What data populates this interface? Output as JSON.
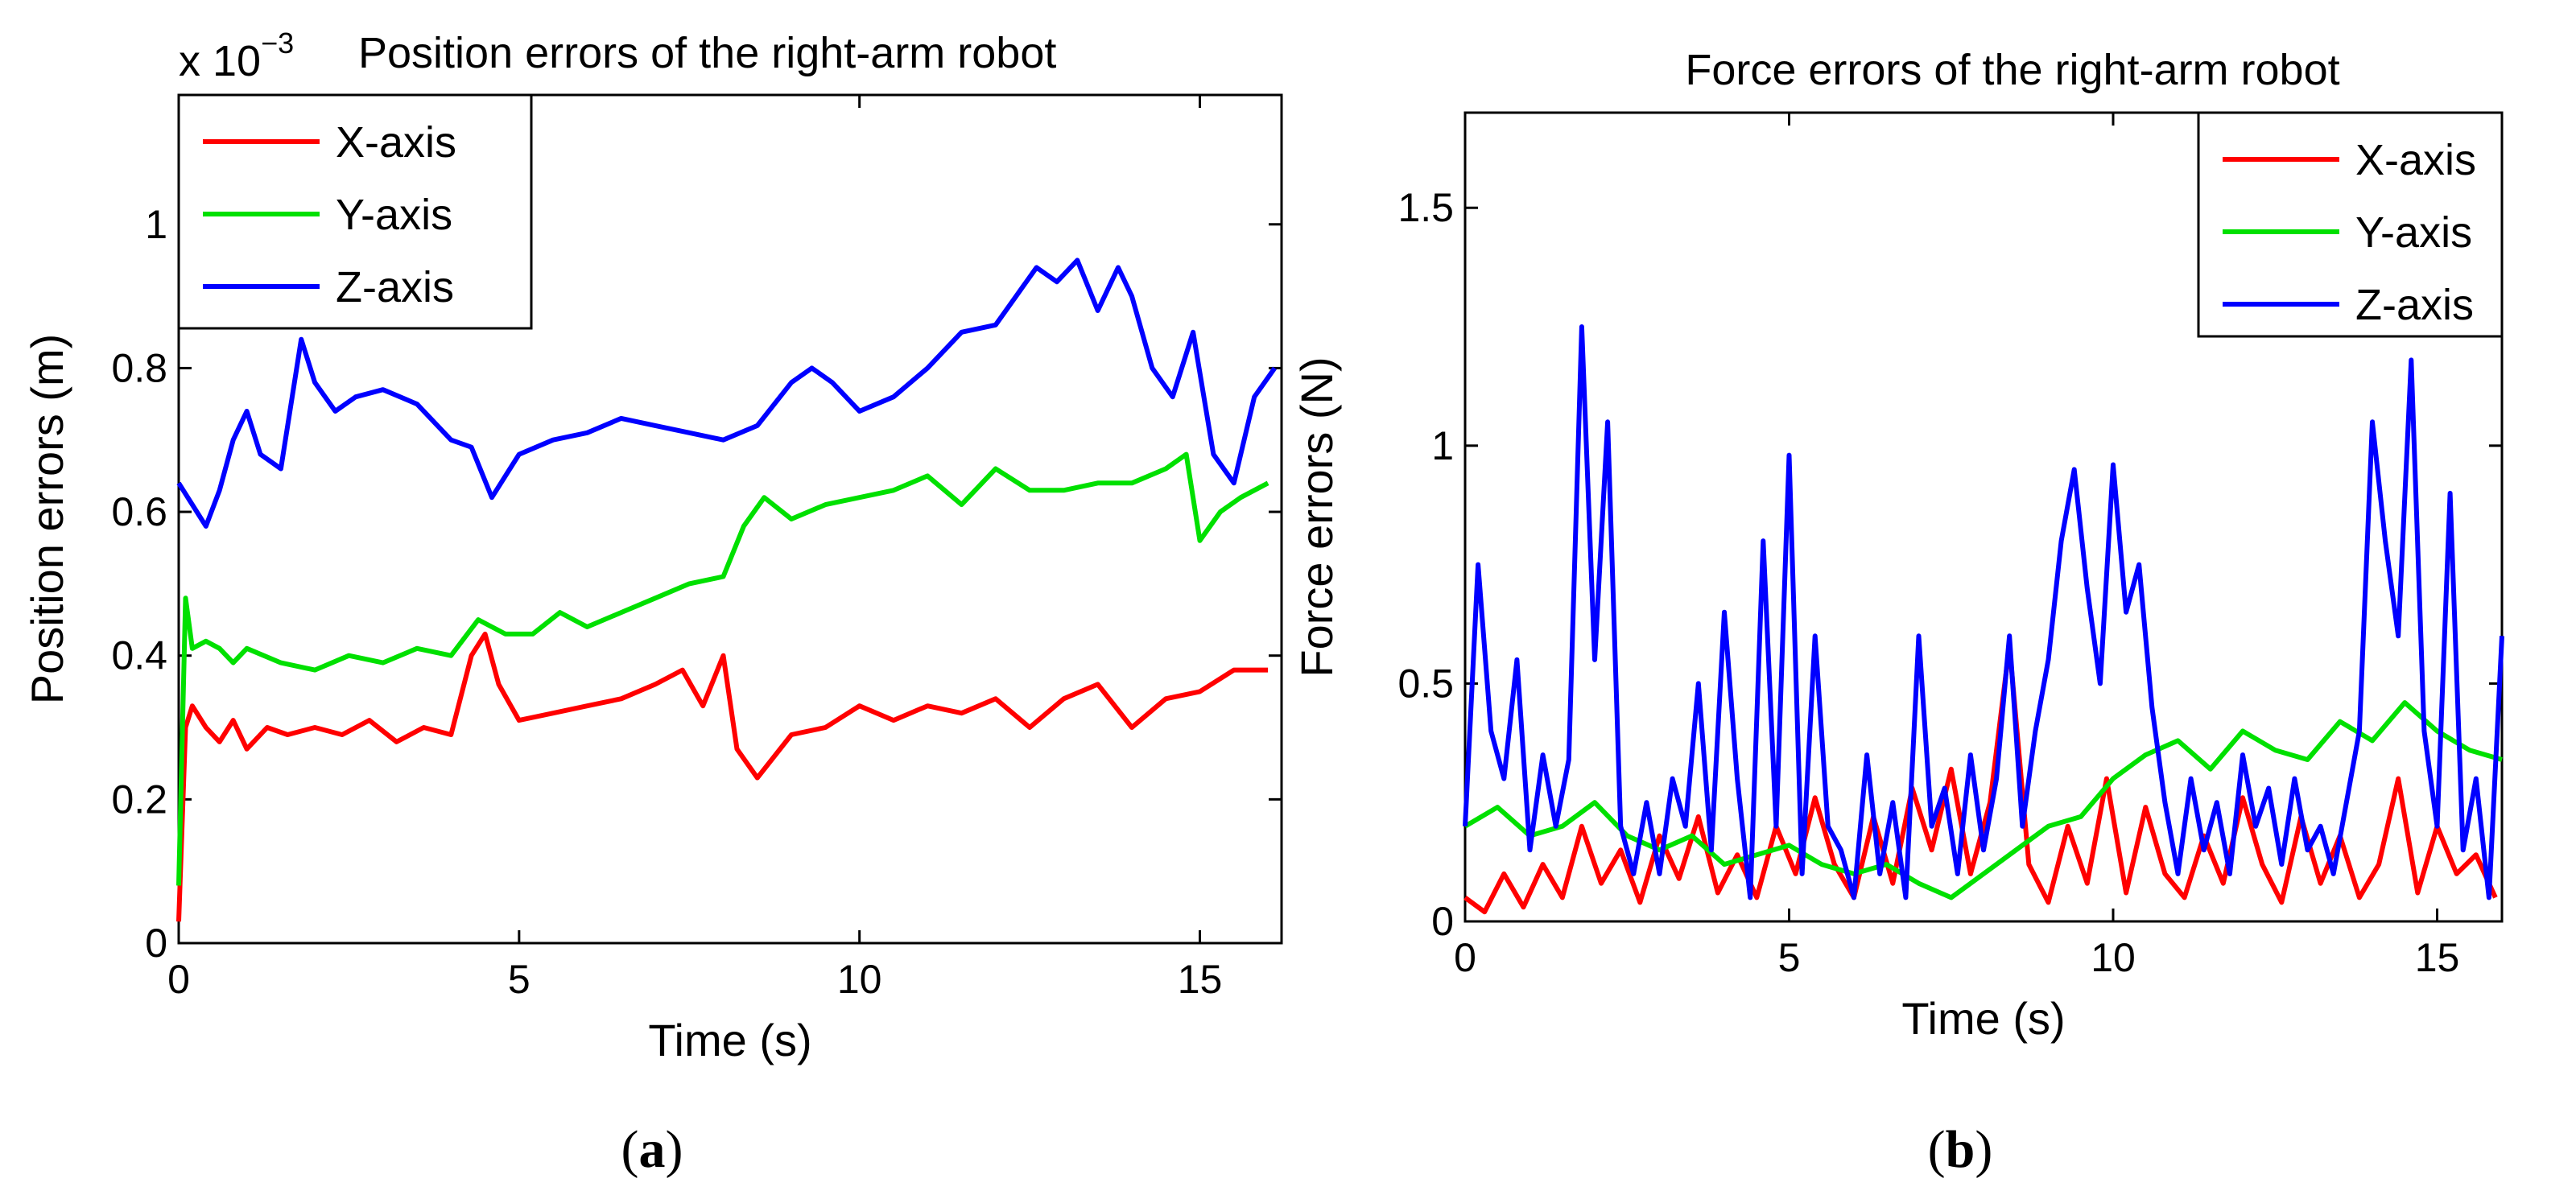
{
  "chart_data": [
    {
      "type": "line",
      "title": "Position errors of the right-arm robot",
      "scale_label": "x 10",
      "scale_exponent": "−3",
      "xlabel": "Time (s)",
      "ylabel": "Position errors (m)",
      "xlim": [
        0,
        16.2
      ],
      "ylim": [
        0,
        0.00118
      ],
      "xticks": [
        0,
        5,
        10,
        15
      ],
      "xtick_labels": [
        "0",
        "5",
        "10",
        "15"
      ],
      "yticks": [
        0,
        0.0002,
        0.0004,
        0.0006,
        0.0008,
        0.001
      ],
      "ytick_labels": [
        "0",
        "0.2",
        "0.4",
        "0.6",
        "0.8",
        "1"
      ],
      "grid": false,
      "legend_position": "top-left",
      "caption": "a",
      "series": [
        {
          "name": "X-axis",
          "color": "#ff0000",
          "x": [
            0,
            0.1,
            0.2,
            0.4,
            0.6,
            0.8,
            1.0,
            1.3,
            1.6,
            2.0,
            2.4,
            2.8,
            3.2,
            3.6,
            4.0,
            4.3,
            4.5,
            4.7,
            5.0,
            5.5,
            6.0,
            6.5,
            7.0,
            7.4,
            7.7,
            8.0,
            8.2,
            8.5,
            9.0,
            9.5,
            10.0,
            10.5,
            11.0,
            11.5,
            12.0,
            12.5,
            13.0,
            13.5,
            14.0,
            14.5,
            15.0,
            15.5,
            16.0
          ],
          "values": [
            3e-05,
            0.0003,
            0.00033,
            0.0003,
            0.00028,
            0.00031,
            0.00027,
            0.0003,
            0.00029,
            0.0003,
            0.00029,
            0.00031,
            0.00028,
            0.0003,
            0.00029,
            0.0004,
            0.00043,
            0.00036,
            0.00031,
            0.00032,
            0.00033,
            0.00034,
            0.00036,
            0.00038,
            0.00033,
            0.0004,
            0.00027,
            0.00023,
            0.00029,
            0.0003,
            0.00033,
            0.00031,
            0.00033,
            0.00032,
            0.00034,
            0.0003,
            0.00034,
            0.00036,
            0.0003,
            0.00034,
            0.00035,
            0.00038,
            0.00038
          ]
        },
        {
          "name": "Y-axis",
          "color": "#00e000",
          "x": [
            0,
            0.1,
            0.2,
            0.4,
            0.6,
            0.8,
            1.0,
            1.5,
            2.0,
            2.5,
            3.0,
            3.5,
            4.0,
            4.4,
            4.8,
            5.2,
            5.6,
            6.0,
            6.5,
            7.0,
            7.5,
            8.0,
            8.3,
            8.6,
            9.0,
            9.5,
            10.0,
            10.5,
            11.0,
            11.5,
            12.0,
            12.5,
            13.0,
            13.5,
            14.0,
            14.5,
            14.8,
            15.0,
            15.3,
            15.6,
            16.0
          ],
          "values": [
            8e-05,
            0.00048,
            0.00041,
            0.00042,
            0.00041,
            0.00039,
            0.00041,
            0.00039,
            0.00038,
            0.0004,
            0.00039,
            0.00041,
            0.0004,
            0.00045,
            0.00043,
            0.00043,
            0.00046,
            0.00044,
            0.00046,
            0.00048,
            0.0005,
            0.00051,
            0.00058,
            0.00062,
            0.00059,
            0.00061,
            0.00062,
            0.00063,
            0.00065,
            0.00061,
            0.00066,
            0.00063,
            0.00063,
            0.00064,
            0.00064,
            0.00066,
            0.00068,
            0.00056,
            0.0006,
            0.00062,
            0.00064
          ]
        },
        {
          "name": "Z-axis",
          "color": "#0000ff",
          "x": [
            0,
            0.2,
            0.4,
            0.6,
            0.8,
            1.0,
            1.2,
            1.5,
            1.8,
            2.0,
            2.3,
            2.6,
            3.0,
            3.5,
            4.0,
            4.3,
            4.6,
            5.0,
            5.5,
            6.0,
            6.5,
            7.0,
            7.5,
            8.0,
            8.5,
            9.0,
            9.3,
            9.6,
            10.0,
            10.5,
            11.0,
            11.5,
            12.0,
            12.3,
            12.6,
            12.9,
            13.2,
            13.5,
            13.8,
            14.0,
            14.3,
            14.6,
            14.9,
            15.2,
            15.5,
            15.8,
            16.1
          ],
          "values": [
            0.00064,
            0.00061,
            0.00058,
            0.00063,
            0.0007,
            0.00074,
            0.00068,
            0.00066,
            0.00084,
            0.00078,
            0.00074,
            0.00076,
            0.00077,
            0.00075,
            0.0007,
            0.00069,
            0.00062,
            0.00068,
            0.0007,
            0.00071,
            0.00073,
            0.00072,
            0.00071,
            0.0007,
            0.00072,
            0.00078,
            0.0008,
            0.00078,
            0.00074,
            0.00076,
            0.0008,
            0.00085,
            0.00086,
            0.0009,
            0.00094,
            0.00092,
            0.00095,
            0.00088,
            0.00094,
            0.0009,
            0.0008,
            0.00076,
            0.00085,
            0.00068,
            0.00064,
            0.00076,
            0.0008
          ]
        }
      ]
    },
    {
      "type": "line",
      "title": "Force errors of the right-arm robot",
      "xlabel": "Time (s)",
      "ylabel": "Force errors (N)",
      "xlim": [
        0,
        16
      ],
      "ylim": [
        0,
        1.7
      ],
      "xticks": [
        0,
        5,
        10,
        15
      ],
      "xtick_labels": [
        "0",
        "5",
        "10",
        "15"
      ],
      "yticks": [
        0,
        0.5,
        1,
        1.5
      ],
      "ytick_labels": [
        "0",
        "0.5",
        "1",
        "1.5"
      ],
      "grid": false,
      "legend_position": "top-right",
      "caption": "b",
      "series": [
        {
          "name": "X-axis",
          "color": "#ff0000",
          "x": [
            0,
            0.3,
            0.6,
            0.9,
            1.2,
            1.5,
            1.8,
            2.1,
            2.4,
            2.7,
            3.0,
            3.3,
            3.6,
            3.9,
            4.2,
            4.5,
            4.8,
            5.1,
            5.4,
            5.7,
            6.0,
            6.3,
            6.6,
            6.9,
            7.2,
            7.5,
            7.8,
            8.1,
            8.4,
            8.7,
            9.0,
            9.3,
            9.6,
            9.9,
            10.2,
            10.5,
            10.8,
            11.1,
            11.4,
            11.7,
            12.0,
            12.3,
            12.6,
            12.9,
            13.2,
            13.5,
            13.8,
            14.1,
            14.4,
            14.7,
            15.0,
            15.3,
            15.6,
            15.9
          ],
          "values": [
            0.05,
            0.02,
            0.1,
            0.03,
            0.12,
            0.05,
            0.2,
            0.08,
            0.15,
            0.04,
            0.18,
            0.09,
            0.22,
            0.06,
            0.14,
            0.05,
            0.2,
            0.1,
            0.26,
            0.12,
            0.05,
            0.22,
            0.08,
            0.28,
            0.15,
            0.32,
            0.1,
            0.25,
            0.58,
            0.12,
            0.04,
            0.2,
            0.08,
            0.3,
            0.06,
            0.24,
            0.1,
            0.05,
            0.18,
            0.08,
            0.26,
            0.12,
            0.04,
            0.22,
            0.08,
            0.18,
            0.05,
            0.12,
            0.3,
            0.06,
            0.2,
            0.1,
            0.14,
            0.05
          ]
        },
        {
          "name": "Y-axis",
          "color": "#00e000",
          "x": [
            0,
            0.5,
            1.0,
            1.5,
            2.0,
            2.5,
            3.0,
            3.5,
            4.0,
            4.5,
            5.0,
            5.5,
            6.0,
            6.5,
            7.0,
            7.5,
            8.0,
            8.5,
            9.0,
            9.5,
            10.0,
            10.5,
            11.0,
            11.5,
            12.0,
            12.5,
            13.0,
            13.5,
            14.0,
            14.5,
            15.0,
            15.5,
            16.0
          ],
          "values": [
            0.2,
            0.24,
            0.18,
            0.2,
            0.25,
            0.18,
            0.15,
            0.18,
            0.12,
            0.14,
            0.16,
            0.12,
            0.1,
            0.12,
            0.08,
            0.05,
            0.1,
            0.15,
            0.2,
            0.22,
            0.3,
            0.35,
            0.38,
            0.32,
            0.4,
            0.36,
            0.34,
            0.42,
            0.38,
            0.46,
            0.4,
            0.36,
            0.34
          ]
        },
        {
          "name": "Z-axis",
          "color": "#0000ff",
          "x": [
            0,
            0.2,
            0.4,
            0.6,
            0.8,
            1.0,
            1.2,
            1.4,
            1.6,
            1.8,
            2.0,
            2.2,
            2.4,
            2.6,
            2.8,
            3.0,
            3.2,
            3.4,
            3.6,
            3.8,
            4.0,
            4.2,
            4.4,
            4.6,
            4.8,
            5.0,
            5.2,
            5.4,
            5.6,
            5.8,
            6.0,
            6.2,
            6.4,
            6.6,
            6.8,
            7.0,
            7.2,
            7.4,
            7.6,
            7.8,
            8.0,
            8.2,
            8.4,
            8.6,
            8.8,
            9.0,
            9.2,
            9.4,
            9.6,
            9.8,
            10.0,
            10.2,
            10.4,
            10.6,
            10.8,
            11.0,
            11.2,
            11.4,
            11.6,
            11.8,
            12.0,
            12.2,
            12.4,
            12.6,
            12.8,
            13.0,
            13.2,
            13.4,
            13.6,
            13.8,
            14.0,
            14.2,
            14.4,
            14.6,
            14.8,
            15.0,
            15.2,
            15.4,
            15.6,
            15.8,
            16.0
          ],
          "values": [
            0.2,
            0.75,
            0.4,
            0.3,
            0.55,
            0.15,
            0.35,
            0.2,
            0.34,
            1.25,
            0.55,
            1.05,
            0.2,
            0.1,
            0.25,
            0.1,
            0.3,
            0.2,
            0.5,
            0.15,
            0.65,
            0.3,
            0.05,
            0.8,
            0.2,
            0.98,
            0.1,
            0.6,
            0.2,
            0.15,
            0.05,
            0.35,
            0.1,
            0.25,
            0.05,
            0.6,
            0.2,
            0.28,
            0.1,
            0.35,
            0.15,
            0.3,
            0.6,
            0.2,
            0.4,
            0.55,
            0.8,
            0.95,
            0.7,
            0.5,
            0.96,
            0.65,
            0.75,
            0.45,
            0.25,
            0.1,
            0.3,
            0.15,
            0.25,
            0.1,
            0.35,
            0.2,
            0.28,
            0.12,
            0.3,
            0.15,
            0.2,
            0.1,
            0.25,
            0.4,
            1.05,
            0.8,
            0.6,
            1.18,
            0.4,
            0.2,
            0.9,
            0.15,
            0.3,
            0.05,
            0.6
          ]
        }
      ]
    }
  ]
}
